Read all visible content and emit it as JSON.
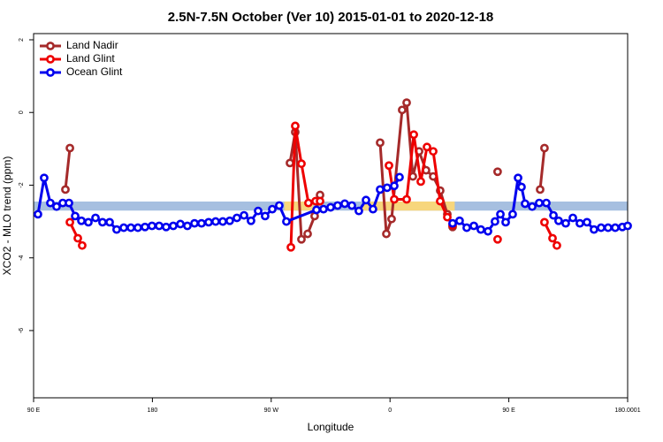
{
  "chart_data": {
    "type": "line",
    "title": "2.5N-7.5N October (Ver 10)   2015-01-01 to 2020-12-18",
    "x_label": "Longitude",
    "y_label": "XCO2 - MLO trend (ppm)",
    "xlim": [
      90,
      540
    ],
    "xticks": [
      {
        "value": 90,
        "label": "90 E"
      },
      180,
      {
        "value": 270,
        "label": "90 W"
      },
      {
        "value": 360,
        "label": "0"
      },
      {
        "value": 450,
        "label": "90 E"
      },
      180.0001
    ],
    "ylim": [
      -7.85,
      2.17
    ],
    "yticks": [
      2,
      0,
      -2,
      -4,
      -6
    ],
    "legend": "top-left",
    "bands": [
      {
        "color": "#a6bfe0",
        "xlim": [
          90,
          540
        ],
        "ylim": [
          -2.7,
          -2.45
        ]
      },
      {
        "color": "#f7d67c",
        "xlim": [
          280,
          302
        ],
        "ylim": [
          -2.7,
          -2.45
        ]
      },
      {
        "color": "#f7d67c",
        "xlim": [
          339,
          409
        ],
        "ylim": [
          -2.7,
          -2.45
        ]
      }
    ],
    "series": [
      {
        "name": "Land Nadir",
        "color": "#a52a2a",
        "x": [
          114.1,
          117.5,
          null,
          284.2,
          288.2,
          292.9,
          297.6,
          302.9,
          307.0,
          null,
          352.5,
          357.2,
          361.2,
          369.2,
          372.6,
          377.3,
          382.0,
          387.3,
          392.7,
          398.0,
          403.4,
          407.4,
          null,
          441.5,
          null,
          473.7,
          477.0
        ],
        "values": [
          -2.12,
          -0.98,
          null,
          -1.39,
          -0.54,
          -3.49,
          -3.34,
          -2.85,
          -2.27,
          null,
          -0.83,
          -3.34,
          -2.93,
          0.07,
          0.27,
          -1.76,
          -1.07,
          -1.59,
          -1.76,
          -2.15,
          -2.8,
          -3.15,
          null,
          -1.63,
          null,
          -2.12,
          -0.98
        ]
      },
      {
        "name": "Land Glint",
        "color": "#ee0000",
        "x": [
          117.5,
          123.5,
          126.8,
          null,
          284.9,
          288.2,
          292.9,
          298.2,
          303.6,
          307.0,
          null,
          359.2,
          363.2,
          372.6,
          378.0,
          383.3,
          388.0,
          392.7,
          398.0,
          403.4,
          407.4,
          null,
          441.5,
          null,
          477.0,
          483.1,
          486.4
        ],
        "values": [
          -3.02,
          -3.46,
          -3.66,
          null,
          -3.71,
          -0.37,
          -1.41,
          -2.49,
          -2.44,
          -2.44,
          null,
          -1.46,
          -2.39,
          -2.39,
          -0.61,
          -1.9,
          -0.95,
          -1.07,
          -2.44,
          -2.88,
          -3.1,
          null,
          -3.49,
          null,
          -3.02,
          -3.46,
          -3.66
        ]
      },
      {
        "name": "Ocean Glint",
        "color": "#0000ee",
        "x": [
          93.3,
          98.0,
          102.7,
          107.4,
          112.1,
          116.8,
          121.5,
          126.2,
          131.5,
          136.9,
          142.2,
          147.6,
          152.9,
          158.3,
          163.7,
          169.0,
          174.4,
          179.7,
          185.1,
          190.4,
          195.8,
          201.2,
          206.5,
          211.9,
          217.2,
          222.6,
          227.9,
          233.3,
          238.6,
          244.0,
          249.4,
          254.7,
          260.1,
          265.4,
          270.8,
          276.1,
          281.5,
          304.3,
          309.6,
          315.0,
          320.3,
          325.7,
          331.1,
          336.4,
          341.8,
          347.1,
          352.5,
          357.8,
          363.2,
          367.2,
          null,
          407.4,
          412.7,
          418.1,
          423.5,
          428.8,
          434.2,
          439.5,
          443.6,
          447.6,
          452.9,
          457.0,
          459.6,
          462.3,
          467.7,
          473.0,
          478.4,
          483.8,
          487.7,
          493.1,
          498.5,
          503.8,
          509.2,
          514.5,
          519.9,
          525.2,
          530.6,
          536.0,
          540.0
        ],
        "values": [
          -2.8,
          -1.8,
          -2.49,
          -2.59,
          -2.49,
          -2.49,
          -2.85,
          -2.98,
          -3.02,
          -2.9,
          -3.02,
          -3.02,
          -3.22,
          -3.17,
          -3.17,
          -3.17,
          -3.15,
          -3.12,
          -3.12,
          -3.15,
          -3.12,
          -3.07,
          -3.12,
          -3.05,
          -3.05,
          -3.02,
          -3.0,
          -3.0,
          -2.98,
          -2.9,
          -2.83,
          -2.98,
          -2.71,
          -2.85,
          -2.66,
          -2.56,
          -3.0,
          -2.68,
          -2.66,
          -2.61,
          -2.56,
          -2.51,
          -2.56,
          -2.71,
          -2.41,
          -2.66,
          -2.12,
          -2.07,
          -2.02,
          -1.78,
          null,
          -3.05,
          -2.98,
          -3.17,
          -3.12,
          -3.22,
          -3.27,
          -3.0,
          -2.8,
          -3.02,
          -2.8,
          -1.8,
          -2.05,
          -2.51,
          -2.59,
          -2.49,
          -2.49,
          -2.83,
          -2.98,
          -3.05,
          -2.9,
          -3.05,
          -3.02,
          -3.22,
          -3.17,
          -3.17,
          -3.17,
          -3.15,
          -3.12
        ]
      }
    ]
  }
}
